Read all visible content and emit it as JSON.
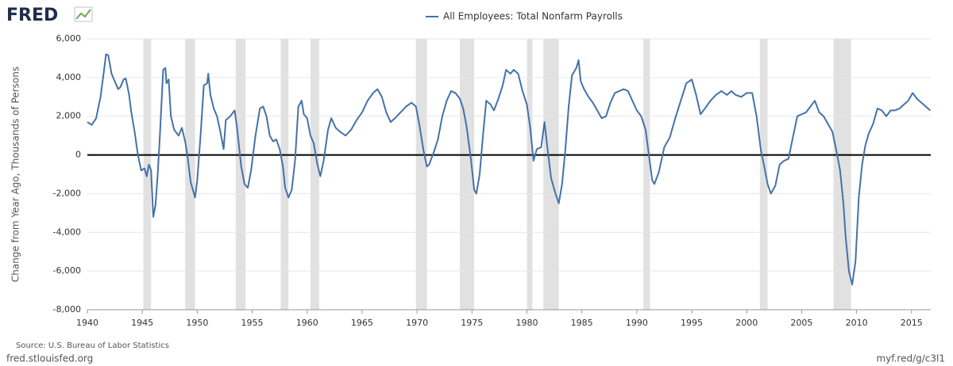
{
  "logo": "FRED",
  "source": "Source: U.S. Bureau of Labor Statistics",
  "site": "fred.stlouisfed.org",
  "short_url": "myf.red/g/c3l1",
  "chart_data": {
    "type": "line",
    "ylabel": "Change from Year Ago, Thousands of Persons",
    "xlim": [
      1940,
      2016.75
    ],
    "ylim": [
      -8000,
      6000
    ],
    "xticks": [
      1940,
      1945,
      1950,
      1955,
      1960,
      1965,
      1970,
      1975,
      1980,
      1985,
      1990,
      1995,
      2000,
      2005,
      2010,
      2015
    ],
    "yticks": [
      {
        "value": -8000,
        "label": "-8,000"
      },
      {
        "value": -6000,
        "label": "-6,000"
      },
      {
        "value": -4000,
        "label": "-4,000"
      },
      {
        "value": -2000,
        "label": "-2,000"
      },
      0,
      {
        "value": 2000,
        "label": "2,000"
      },
      {
        "value": 4000,
        "label": "4,000"
      },
      {
        "value": 6000,
        "label": "6,000"
      }
    ],
    "grid": true,
    "recession_color": "#e1e1e1",
    "recessions": [
      [
        1945.1,
        1945.8
      ],
      [
        1948.9,
        1949.8
      ],
      [
        1953.5,
        1954.4
      ],
      [
        1957.6,
        1958.3
      ],
      [
        1960.3,
        1961.1
      ],
      [
        1969.9,
        1970.9
      ],
      [
        1973.9,
        1975.2
      ],
      [
        1980.0,
        1980.5
      ],
      [
        1981.5,
        1982.9
      ],
      [
        1990.6,
        1991.2
      ],
      [
        2001.2,
        2001.9
      ],
      [
        2007.9,
        2009.5
      ]
    ],
    "x": [
      1940.0,
      1940.4,
      1940.8,
      1941.2,
      1941.5,
      1941.7,
      1941.9,
      1942.2,
      1942.5,
      1942.8,
      1943.0,
      1943.3,
      1943.5,
      1943.8,
      1944.0,
      1944.3,
      1944.6,
      1944.9,
      1945.2,
      1945.4,
      1945.6,
      1945.8,
      1946.0,
      1946.2,
      1946.4,
      1946.6,
      1946.9,
      1947.1,
      1947.2,
      1947.4,
      1947.6,
      1947.9,
      1948.3,
      1948.6,
      1948.9,
      1949.1,
      1949.4,
      1949.6,
      1949.8,
      1950.0,
      1950.3,
      1950.6,
      1950.9,
      1951.0,
      1951.2,
      1951.5,
      1951.8,
      1952.1,
      1952.4,
      1952.6,
      1953.0,
      1953.4,
      1953.6,
      1954.0,
      1954.3,
      1954.6,
      1954.9,
      1955.3,
      1955.7,
      1956.0,
      1956.3,
      1956.6,
      1956.9,
      1957.2,
      1957.5,
      1957.8,
      1958.0,
      1958.3,
      1958.6,
      1958.9,
      1959.2,
      1959.5,
      1959.7,
      1960.0,
      1960.3,
      1960.6,
      1960.9,
      1961.2,
      1961.5,
      1961.9,
      1962.2,
      1962.6,
      1963.0,
      1963.5,
      1964.0,
      1964.5,
      1965.0,
      1965.5,
      1966.0,
      1966.4,
      1966.8,
      1967.2,
      1967.6,
      1968.0,
      1968.5,
      1969.0,
      1969.5,
      1969.9,
      1970.2,
      1970.6,
      1970.9,
      1971.1,
      1971.5,
      1971.9,
      1972.3,
      1972.7,
      1973.1,
      1973.5,
      1973.9,
      1974.2,
      1974.5,
      1974.9,
      1975.2,
      1975.4,
      1975.7,
      1976.0,
      1976.3,
      1976.7,
      1977.0,
      1977.4,
      1977.8,
      1978.1,
      1978.5,
      1978.8,
      1979.2,
      1979.6,
      1980.0,
      1980.3,
      1980.6,
      1980.9,
      1981.3,
      1981.6,
      1981.9,
      1982.2,
      1982.6,
      1982.9,
      1983.2,
      1983.5,
      1983.8,
      1984.1,
      1984.5,
      1984.7,
      1984.9,
      1985.2,
      1985.6,
      1986.0,
      1986.4,
      1986.8,
      1987.2,
      1987.6,
      1988.0,
      1988.4,
      1988.8,
      1989.2,
      1989.6,
      1990.0,
      1990.4,
      1990.8,
      1991.1,
      1991.4,
      1991.6,
      1992.0,
      1992.5,
      1993.0,
      1993.5,
      1994.0,
      1994.5,
      1995.0,
      1995.4,
      1995.8,
      1996.2,
      1996.7,
      1997.2,
      1997.7,
      1998.2,
      1998.6,
      1999.0,
      1999.5,
      2000.0,
      2000.5,
      2000.9,
      2001.3,
      2001.6,
      2001.9,
      2002.2,
      2002.6,
      2003.0,
      2003.4,
      2003.8,
      2004.2,
      2004.6,
      2005.0,
      2005.4,
      2005.8,
      2006.2,
      2006.6,
      2007.0,
      2007.4,
      2007.8,
      2008.2,
      2008.5,
      2008.8,
      2009.0,
      2009.3,
      2009.6,
      2009.9,
      2010.2,
      2010.5,
      2010.8,
      2011.1,
      2011.5,
      2011.9,
      2012.3,
      2012.7,
      2013.1,
      2013.5,
      2013.9,
      2014.3,
      2014.7,
      2015.1,
      2015.5,
      2015.9,
      2016.3,
      2016.7
    ],
    "series": [
      {
        "name": "All Employees: Total Nonfarm Payrolls",
        "color": "#4572a7",
        "values": [
          1700,
          1550,
          1900,
          3000,
          4300,
          5200,
          5150,
          4200,
          3800,
          3400,
          3500,
          3900,
          3950,
          3100,
          2200,
          1200,
          0,
          -800,
          -700,
          -1100,
          -500,
          -800,
          -3200,
          -2600,
          -1000,
          1000,
          4400,
          4500,
          3700,
          3900,
          2000,
          1300,
          1000,
          1400,
          700,
          0,
          -1400,
          -1800,
          -2200,
          -1300,
          1000,
          3600,
          3700,
          4200,
          3100,
          2400,
          2000,
          1200,
          300,
          1800,
          2000,
          2300,
          1500,
          -600,
          -1500,
          -1700,
          -800,
          1000,
          2400,
          2500,
          2000,
          1000,
          700,
          800,
          300,
          -600,
          -1700,
          -2200,
          -1800,
          -300,
          2500,
          2800,
          2100,
          1900,
          1000,
          600,
          -400,
          -1100,
          -300,
          1300,
          1900,
          1400,
          1200,
          1000,
          1300,
          1800,
          2200,
          2800,
          3200,
          3400,
          3000,
          2200,
          1700,
          1900,
          2200,
          2500,
          2700,
          2500,
          1600,
          200,
          -600,
          -500,
          100,
          800,
          2000,
          2800,
          3300,
          3200,
          2900,
          2400,
          1500,
          -200,
          -1800,
          -2000,
          -1000,
          1000,
          2800,
          2600,
          2300,
          2900,
          3600,
          4400,
          4200,
          4400,
          4200,
          3300,
          2600,
          1400,
          -300,
          300,
          400,
          1700,
          200,
          -1200,
          -2000,
          -2500,
          -1500,
          300,
          2500,
          4100,
          4500,
          4900,
          3800,
          3400,
          3000,
          2700,
          2300,
          1900,
          2000,
          2700,
          3200,
          3300,
          3400,
          3300,
          2800,
          2300,
          2000,
          1300,
          0,
          -1300,
          -1500,
          -900,
          400,
          900,
          1900,
          2800,
          3700,
          3900,
          3100,
          2100,
          2400,
          2800,
          3100,
          3300,
          3100,
          3300,
          3100,
          3000,
          3200,
          3200,
          2000,
          200,
          -600,
          -1500,
          -2000,
          -1600,
          -500,
          -300,
          -200,
          900,
          2000,
          2100,
          2200,
          2500,
          2800,
          2200,
          2000,
          1600,
          1200,
          100,
          -800,
          -2500,
          -4200,
          -6000,
          -6700,
          -5500,
          -2200,
          -500,
          500,
          1100,
          1600,
          2400,
          2300,
          2000,
          2300,
          2300,
          2400,
          2600,
          2800,
          3200,
          2900,
          2700,
          2500,
          2300
        ]
      }
    ]
  }
}
